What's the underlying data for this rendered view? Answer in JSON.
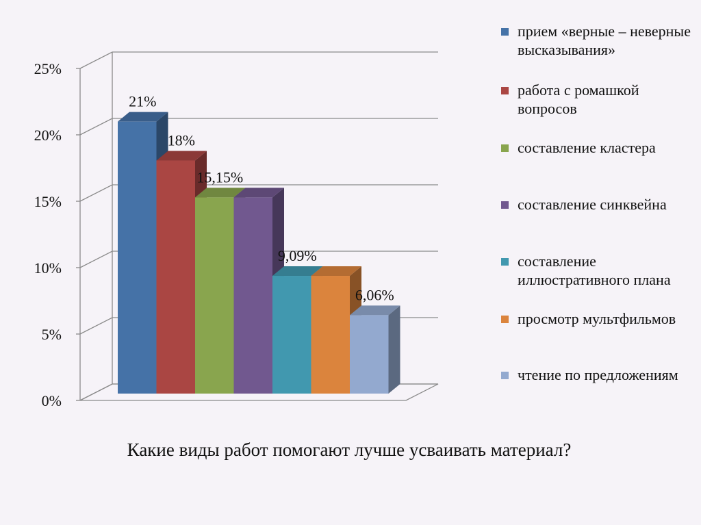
{
  "chart_data": {
    "type": "bar",
    "style": "3d-clustered-column",
    "title": "Какие виды работ помогают лучше усваивать материал?",
    "yticks": [
      "0%",
      "5%",
      "10%",
      "15%",
      "20%",
      "25%"
    ],
    "ylim": [
      0,
      25
    ],
    "grid": true,
    "legend_position": "right",
    "series": [
      {
        "name": "прием «верные – неверные высказывания»",
        "value": 21,
        "label": "21%",
        "color": "#4572a7"
      },
      {
        "name": "работа с ромашкой вопросов",
        "value": 18,
        "label": "18%",
        "color": "#aa4643"
      },
      {
        "name": "составление кластера",
        "value": 15.15,
        "label": "15,15%",
        "color": "#89a54e"
      },
      {
        "name": "составление синквейна",
        "value": 15.15,
        "label": "",
        "color": "#71588f"
      },
      {
        "name": "составление иллюстративного плана",
        "value": 9.09,
        "label": "9,09%",
        "color": "#4198af"
      },
      {
        "name": "просмотр мультфильмов",
        "value": 9.09,
        "label": "",
        "color": "#db843d"
      },
      {
        "name": "чтение по предложениям",
        "value": 6.06,
        "label": "6,06%",
        "color": "#93a9cf"
      }
    ]
  }
}
